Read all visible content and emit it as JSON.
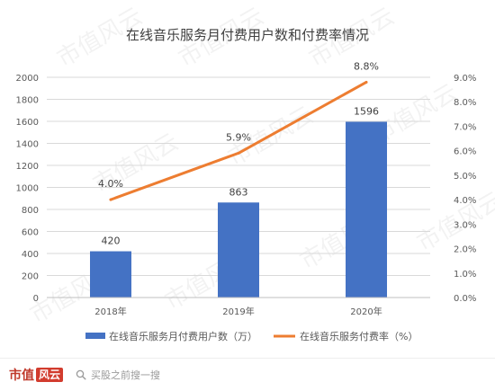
{
  "chart_data": {
    "type": "bar",
    "title": "在线音乐服务月付费用户数和付费率情况",
    "categories": [
      "2018年",
      "2019年",
      "2020年"
    ],
    "series": [
      {
        "name": "在线音乐服务月付费用户数（万）",
        "kind": "bar",
        "axis": "left",
        "values": [
          420,
          863,
          1596
        ],
        "labels": [
          "420",
          "863",
          "1596"
        ],
        "color": "#4472C4"
      },
      {
        "name": "在线音乐服务付费率（%）",
        "kind": "line",
        "axis": "right",
        "values": [
          4.0,
          5.9,
          8.8
        ],
        "labels": [
          "4.0%",
          "5.9%",
          "8.8%"
        ],
        "color": "#ED7D31"
      }
    ],
    "y_left": {
      "range": [
        0,
        2000
      ],
      "ticks": [
        "0",
        "200",
        "400",
        "600",
        "800",
        "1000",
        "1200",
        "1400",
        "1600",
        "1800",
        "2000"
      ]
    },
    "y_right": {
      "range": [
        0,
        9
      ],
      "ticks": [
        "0.0%",
        "1.0%",
        "2.0%",
        "3.0%",
        "4.0%",
        "5.0%",
        "6.0%",
        "7.0%",
        "8.0%",
        "9.0%"
      ]
    },
    "grid": true,
    "legend_position": "bottom"
  },
  "watermark": "市值风云",
  "footer": {
    "brand": "市值",
    "brand_mark": "风云",
    "search_hint": "买股之前搜一搜",
    "search_icon": "search-icon"
  }
}
